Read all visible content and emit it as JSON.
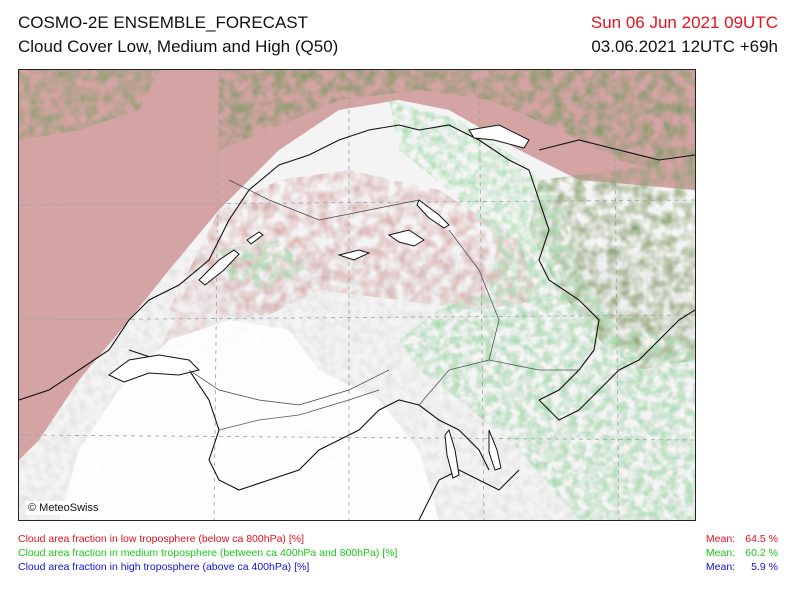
{
  "header": {
    "title_line1": "COSMO-2E ENSEMBLE_FORECAST",
    "title_line2": "Cloud Cover Low, Medium and High (Q50)",
    "valid_time": "Sun 06 Jun 2021 09UTC",
    "run_time": "03.06.2021 12UTC +69h"
  },
  "map": {
    "copyright": "© MeteoSwiss"
  },
  "legend": [
    {
      "text": "Cloud area fraction in low troposphere (below ca 800hPa) [%]",
      "mean_label": "Mean:",
      "mean_value": "64.5 %",
      "color": "#e8101c"
    },
    {
      "text": "Cloud area fraction in medium troposphere (between ca 400hPa and 800hPa) [%]",
      "mean_label": "Mean:",
      "mean_value": "60.2 %",
      "color": "#18c818"
    },
    {
      "text": "Cloud area fraction in high troposphere (above ca 400hPa) [%]",
      "mean_label": "Mean:",
      "mean_value": "5.9 %",
      "color": "#1010e0"
    }
  ],
  "colors": {
    "low_cloud": "#d4a3a3",
    "mid_cloud": "#9fd8a8",
    "overlap": "#7f9a68",
    "clear": "#ffffff"
  }
}
